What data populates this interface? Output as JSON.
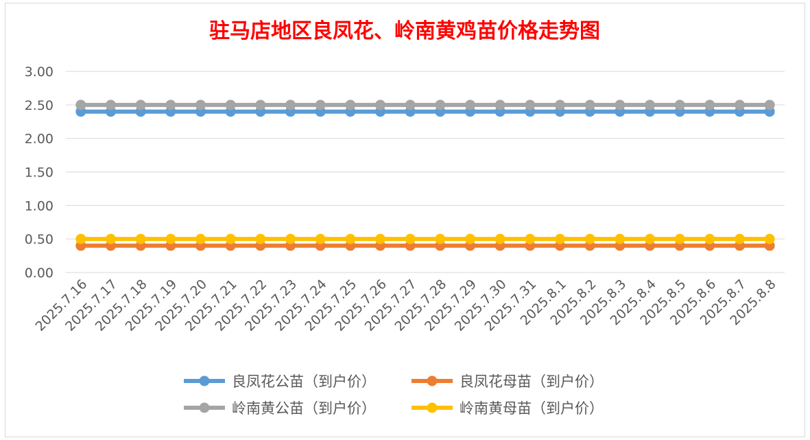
{
  "chart_data": {
    "type": "line",
    "title": "驻马店地区良凤花、岭南黄鸡苗价格走势图",
    "xlabel": "",
    "ylabel": "",
    "ylim": [
      0,
      3
    ],
    "yticks": [
      "0.00",
      "0.50",
      "1.00",
      "1.50",
      "2.00",
      "2.50",
      "3.00"
    ],
    "grid": true,
    "legend_position": "bottom",
    "title_color": "#FF0000",
    "x": [
      "2025.7.16",
      "2025.7.17",
      "2025.7.18",
      "2025.7.19",
      "2025.7.20",
      "2025.7.21",
      "2025.7.22",
      "2025.7.23",
      "2025.7.24",
      "2025.7.25",
      "2025.7.26",
      "2025.7.27",
      "2025.7.28",
      "2025.7.29",
      "2025.7.30",
      "2025.7.31",
      "2025.8.1",
      "2025.8.2",
      "2025.8.3",
      "2025.8.4",
      "2025.8.5",
      "2025.8.6",
      "2025.8.7",
      "2025.8.8"
    ],
    "series": [
      {
        "name": "良凤花公苗（到户价）",
        "color": "#5B9BD5",
        "values": [
          2.4,
          2.4,
          2.4,
          2.4,
          2.4,
          2.4,
          2.4,
          2.4,
          2.4,
          2.4,
          2.4,
          2.4,
          2.4,
          2.4,
          2.4,
          2.4,
          2.4,
          2.4,
          2.4,
          2.4,
          2.4,
          2.4,
          2.4,
          2.4
        ]
      },
      {
        "name": "良凤花母苗（到户价）",
        "color": "#ED7D31",
        "values": [
          0.4,
          0.4,
          0.4,
          0.4,
          0.4,
          0.4,
          0.4,
          0.4,
          0.4,
          0.4,
          0.4,
          0.4,
          0.4,
          0.4,
          0.4,
          0.4,
          0.4,
          0.4,
          0.4,
          0.4,
          0.4,
          0.4,
          0.4,
          0.4
        ]
      },
      {
        "name": "岭南黄公苗（到户价）",
        "color": "#A5A5A5",
        "values": [
          2.5,
          2.5,
          2.5,
          2.5,
          2.5,
          2.5,
          2.5,
          2.5,
          2.5,
          2.5,
          2.5,
          2.5,
          2.5,
          2.5,
          2.5,
          2.5,
          2.5,
          2.5,
          2.5,
          2.5,
          2.5,
          2.5,
          2.5,
          2.5
        ]
      },
      {
        "name": "岭南黄母苗（到户价）",
        "color": "#FFC000",
        "values": [
          0.5,
          0.5,
          0.5,
          0.5,
          0.5,
          0.5,
          0.5,
          0.5,
          0.5,
          0.5,
          0.5,
          0.5,
          0.5,
          0.5,
          0.5,
          0.5,
          0.5,
          0.5,
          0.5,
          0.5,
          0.5,
          0.5,
          0.5,
          0.5
        ]
      }
    ]
  }
}
